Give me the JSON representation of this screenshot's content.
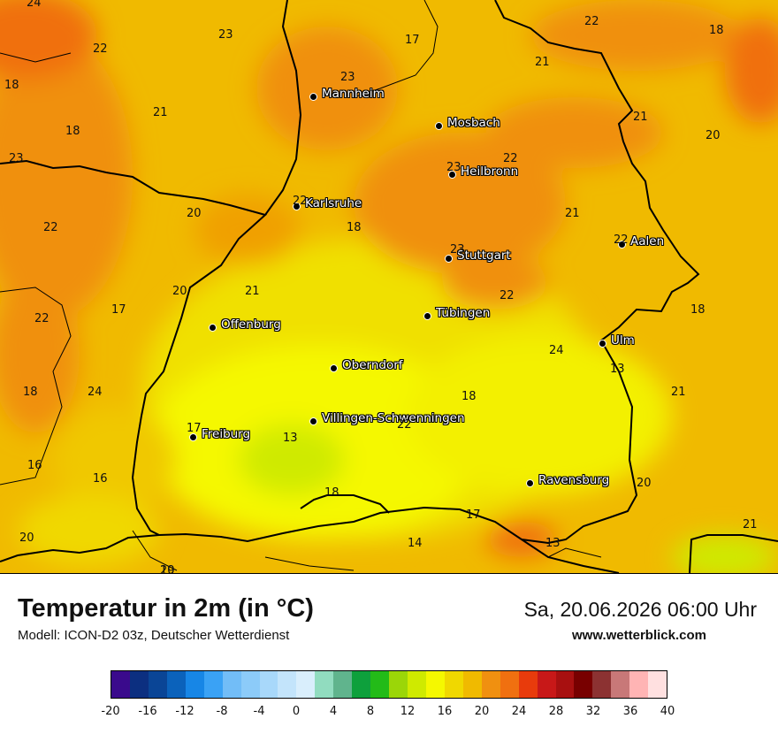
{
  "map": {
    "title": "Temperatur in 2m (in °C)",
    "model": "Modell: ICON-D2 03z, Deutscher Wetterdienst",
    "datetime": "Sa, 20.06.2026 06:00 Uhr",
    "website": "www.wetterblick.com",
    "cities": [
      {
        "name": "Mannheim"
      },
      {
        "name": "Mosbach"
      },
      {
        "name": "Heilbronn"
      },
      {
        "name": "Karlsruhe"
      },
      {
        "name": "Stuttgart"
      },
      {
        "name": "Aalen"
      },
      {
        "name": "Tübingen"
      },
      {
        "name": "Offenburg"
      },
      {
        "name": "Ulm"
      },
      {
        "name": "Oberndorf"
      },
      {
        "name": "Villingen-Schwenningen"
      },
      {
        "name": "Freiburg"
      },
      {
        "name": "Ravensburg"
      }
    ],
    "temperature_values": [
      "24",
      "22",
      "23",
      "17",
      "22",
      "18",
      "18",
      "23",
      "21",
      "21",
      "18",
      "21",
      "20",
      "23",
      "23",
      "22",
      "22",
      "20",
      "21",
      "18",
      "22",
      "23",
      "22",
      "20",
      "22",
      "21",
      "17",
      "22",
      "18",
      "24",
      "13",
      "18",
      "24",
      "21",
      "18",
      "17",
      "22",
      "13",
      "16",
      "16",
      "20",
      "18",
      "17",
      "20",
      "14",
      "13",
      "21",
      "19",
      "20"
    ],
    "legend": {
      "colors": [
        "#3a0a8c",
        "#0c2f80",
        "#0a4596",
        "#0b62bb",
        "#1786e6",
        "#3aa2f5",
        "#72bdf7",
        "#8ccbf9",
        "#a8d8fa",
        "#c3e4fb",
        "#d9eefc",
        "#91dcbf",
        "#60b48d",
        "#0ea03c",
        "#23bb18",
        "#9bd608",
        "#cfea00",
        "#f5f800",
        "#f0d800",
        "#f0ba00",
        "#f09010",
        "#f07010",
        "#e83b0c",
        "#c81818",
        "#a81010",
        "#780000",
        "#8c3232",
        "#c87878",
        "#ffb4b4",
        "#ffe0e0"
      ],
      "ticks": [
        "-20",
        "-16",
        "-12",
        "-8",
        "-4",
        "0",
        "4",
        "8",
        "12",
        "16",
        "20",
        "24",
        "28",
        "32",
        "36",
        "40"
      ]
    }
  }
}
